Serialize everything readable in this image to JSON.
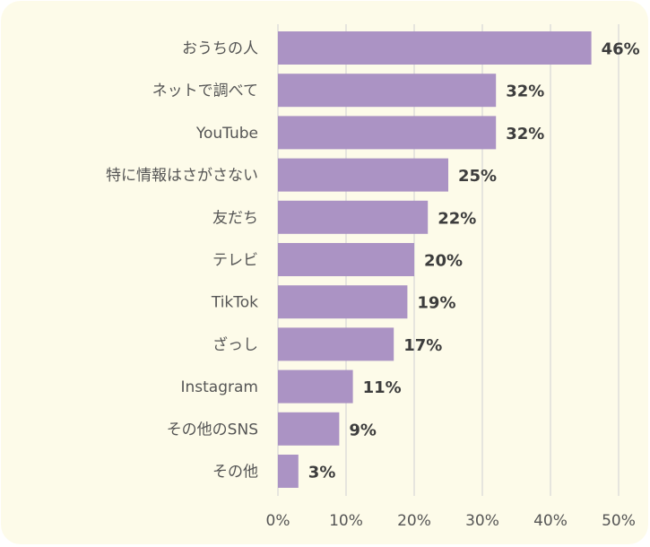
{
  "chart_data": {
    "type": "bar",
    "orientation": "horizontal",
    "categories": [
      "おうちの人",
      "ネットで調べて",
      "YouTube",
      "特に情報はさがさない",
      "友だち",
      "テレビ",
      "TikTok",
      "ざっし",
      "Instagram",
      "その他のSNS",
      "その他"
    ],
    "values": [
      46,
      32,
      32,
      25,
      22,
      20,
      19,
      17,
      11,
      9,
      3
    ],
    "value_labels": [
      "46%",
      "32%",
      "32%",
      "25%",
      "22%",
      "20%",
      "19%",
      "17%",
      "11%",
      "9%",
      "3%"
    ],
    "x_ticks": [
      "0%",
      "10%",
      "20%",
      "30%",
      "40%",
      "50%"
    ],
    "x_tick_values": [
      0,
      10,
      20,
      30,
      40,
      50
    ],
    "xlim": [
      0,
      50
    ],
    "unit": "%",
    "grid": true,
    "title": "",
    "xlabel": "",
    "ylabel": ""
  },
  "colors": {
    "background": "#fdfbe9",
    "bar": "#ab93c4",
    "grid": "#d9d9d9",
    "text": "#555555",
    "value_text": "#3d3d3d"
  }
}
